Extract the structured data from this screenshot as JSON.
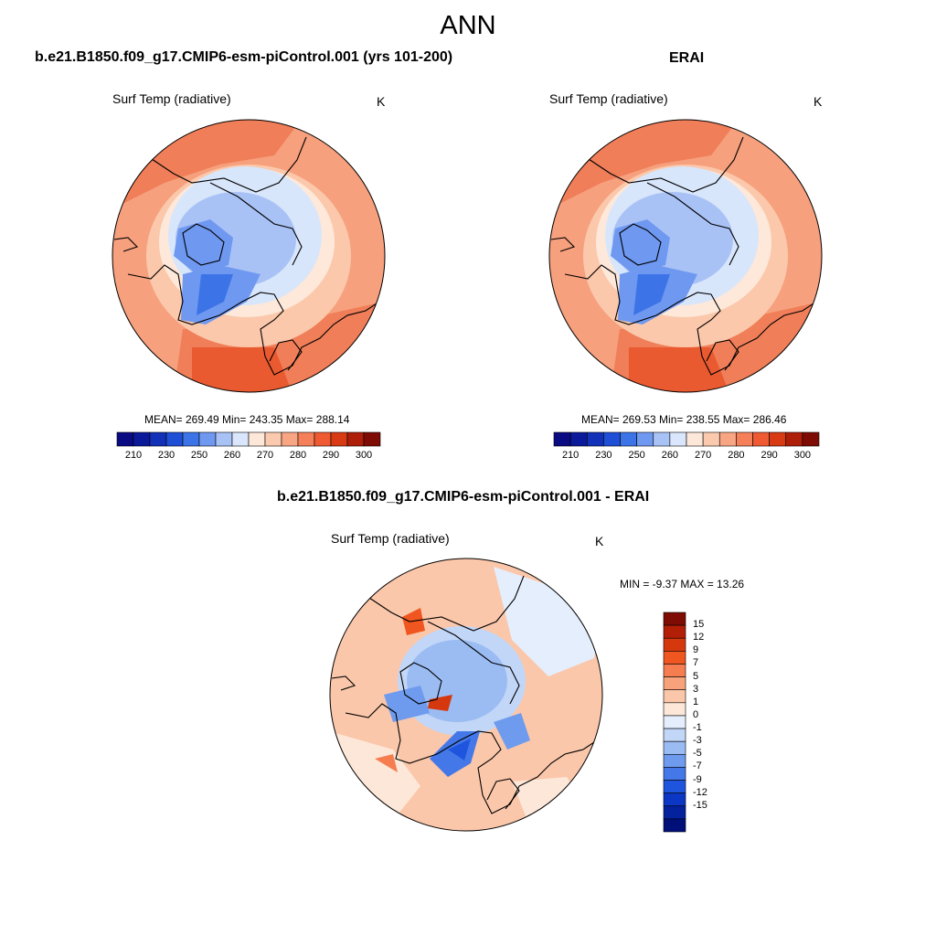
{
  "page_title": "ANN",
  "panels": [
    {
      "title": "b.e21.B1850.f09_g17.CMIP6-esm-piControl.001 (yrs 101-200)",
      "label": "Surf Temp (radiative)",
      "units": "K",
      "stats": "MEAN= 269.49  Min= 243.35  Max= 288.14"
    },
    {
      "title": "ERAI",
      "label": "Surf Temp (radiative)",
      "units": "K",
      "stats": "MEAN= 269.53  Min= 238.55  Max= 286.46"
    },
    {
      "title": "b.e21.B1850.f09_g17.CMIP6-esm-piControl.001 - ERAI",
      "label": "Surf Temp (radiative)",
      "units": "K",
      "stats": "MIN =  -9.37 MAX =  13.26"
    }
  ],
  "abs_colorbar": {
    "colors": [
      "#0a0a82",
      "#0b1a9a",
      "#1131b8",
      "#1f4fd6",
      "#3c74e8",
      "#6f98f0",
      "#a8c2f6",
      "#d9e6fb",
      "#fde7d9",
      "#fbc9ae",
      "#f8a583",
      "#f47f58",
      "#ef5a32",
      "#d83a14",
      "#ad1f08",
      "#7e0b04"
    ],
    "ticks": [
      "210",
      "230",
      "250",
      "260",
      "270",
      "280",
      "290",
      "300"
    ]
  },
  "diff_colorbar": {
    "colors": [
      "#7e0b04",
      "#b21e06",
      "#d6380e",
      "#f0561f",
      "#f57d50",
      "#f8a27c",
      "#fbc7aa",
      "#fde7d8",
      "#e4eefc",
      "#c2d6f7",
      "#9bbcf3",
      "#6e9bee",
      "#4478e8",
      "#1f55de",
      "#0c36c4",
      "#04219e",
      "#010f78"
    ],
    "ticks": [
      "15",
      "12",
      "9",
      "7",
      "5",
      "3",
      "1",
      "0",
      "-1",
      "-3",
      "-5",
      "-7",
      "-9",
      "-12",
      "-15"
    ]
  }
}
